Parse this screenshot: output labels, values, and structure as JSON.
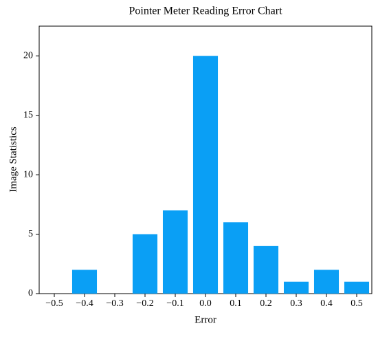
{
  "chart_data": {
    "type": "bar",
    "title": "Pointer Meter Reading Error Chart",
    "x_label": "Error",
    "y_label": "Image Statistics",
    "categories": [
      "−0.5",
      "−0.4",
      "−0.3",
      "−0.2",
      "−0.1",
      "0.0",
      "0.1",
      "0.2",
      "0.3",
      "0.4",
      "0.5"
    ],
    "values": [
      0,
      2,
      0,
      5,
      7,
      20,
      6,
      4,
      1,
      2,
      1
    ],
    "color": "#0a9ff5",
    "ylim": [
      0,
      22.5
    ],
    "yticks": [
      0,
      5,
      10,
      15,
      20
    ],
    "grid": false
  }
}
